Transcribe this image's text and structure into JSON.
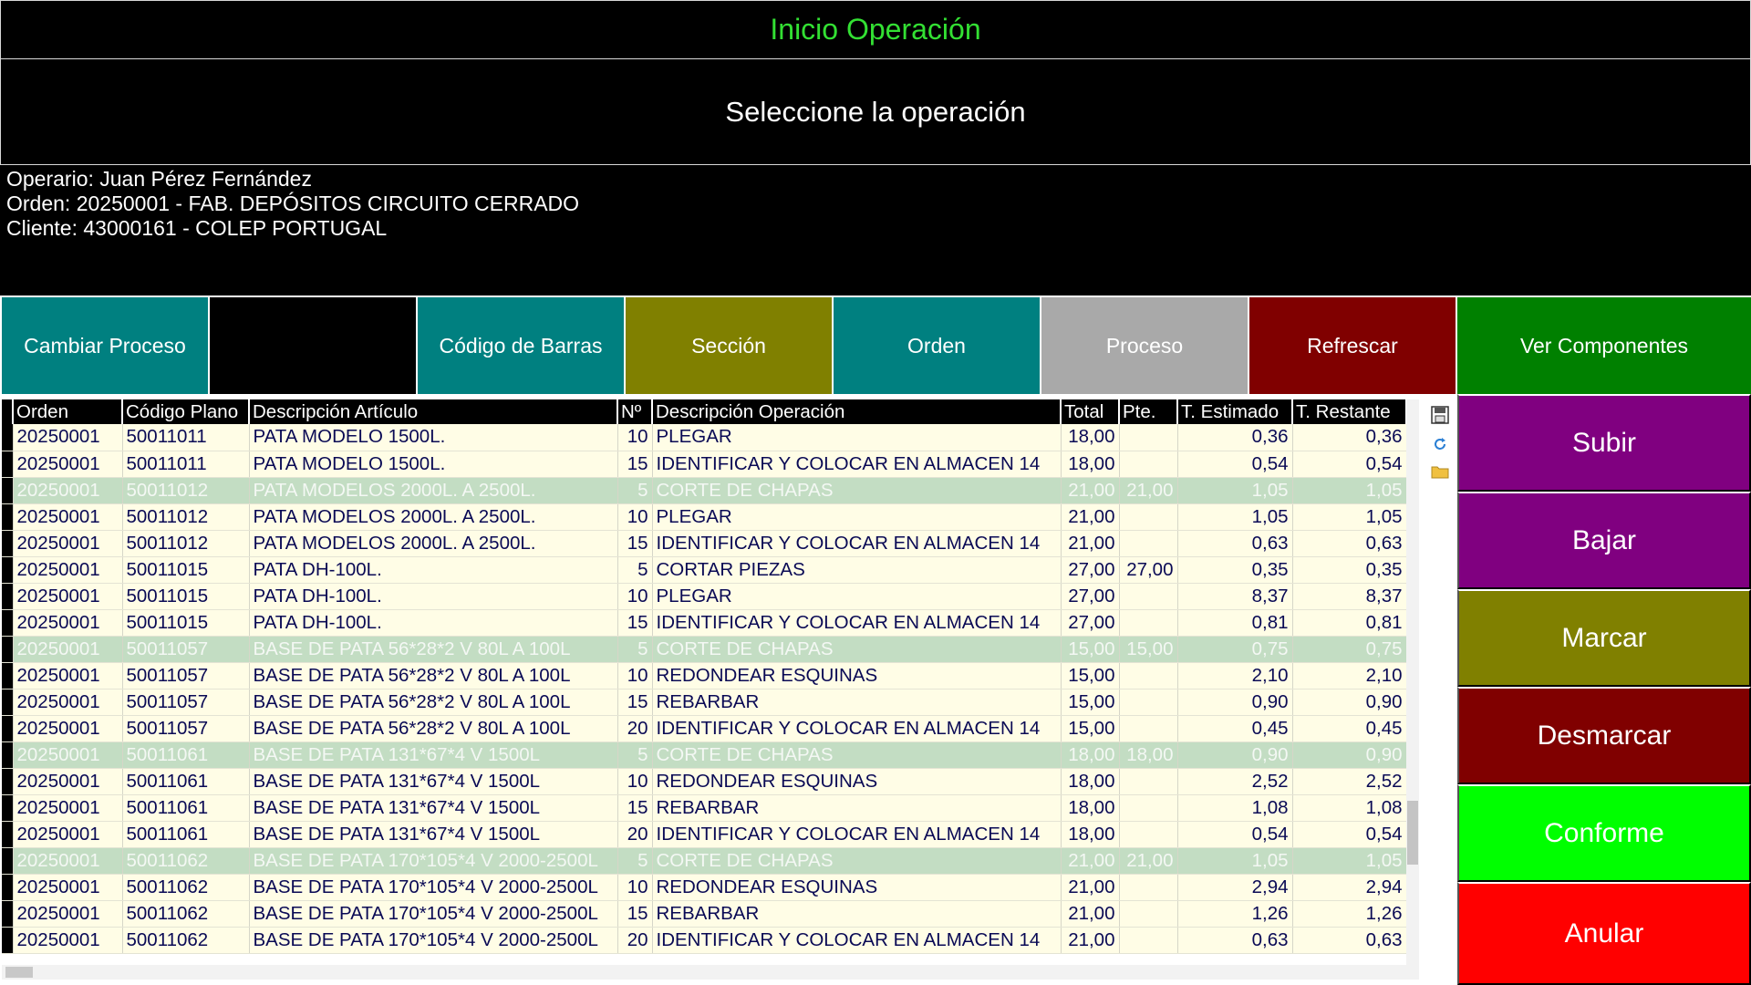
{
  "header": {
    "title": "Inicio Operación",
    "subtitle": "Seleccione la operación"
  },
  "info": {
    "operario": "Operario: Juan Pérez Fernández",
    "orden": "Orden: 20250001 - FAB. DEPÓSITOS CIRCUITO CERRADO",
    "cliente": "Cliente: 43000161 - COLEP PORTUGAL"
  },
  "toolbar": {
    "cambiar_proceso": "Cambiar Proceso",
    "codigo_barras": "Código de Barras",
    "seccion": "Sección",
    "orden": "Orden",
    "proceso": "Proceso",
    "refrescar": "Refrescar",
    "ver_componentes": "Ver Componentes"
  },
  "side_buttons": {
    "subir": "Subir",
    "bajar": "Bajar",
    "marcar": "Marcar",
    "desmarcar": "Desmarcar",
    "conforme": "Conforme",
    "anular": "Anular"
  },
  "colors": {
    "teal": "#008080",
    "olive": "#808000",
    "gray": "#a9a9a9",
    "maroon": "#800000",
    "green": "#008000",
    "purple": "#800080",
    "lime": "#00ff00",
    "red": "#ff0000",
    "title_green": "#33e033",
    "row_highlight": "#c3ddc3",
    "row_normal": "#fffde6"
  },
  "icons": [
    "save-icon",
    "refresh-icon",
    "folder-icon"
  ],
  "grid": {
    "columns": [
      "Orden",
      "Código Plano",
      "Descripción Artículo",
      "Nº",
      "Descripción Operación",
      "Total",
      "Pte.",
      "T. Estimado",
      "T. Restante"
    ],
    "rows": [
      {
        "orden": "20250001",
        "plano": "50011011",
        "articulo": "PATA MODELO 1500L.",
        "n": "10",
        "operacion": "PLEGAR",
        "total": "18,00",
        "pte": "",
        "estimado": "0,36",
        "restante": "0,36",
        "hl": false
      },
      {
        "orden": "20250001",
        "plano": "50011011",
        "articulo": "PATA MODELO 1500L.",
        "n": "15",
        "operacion": "IDENTIFICAR Y COLOCAR EN ALMACEN 14",
        "total": "18,00",
        "pte": "",
        "estimado": "0,54",
        "restante": "0,54",
        "hl": false
      },
      {
        "orden": "20250001",
        "plano": "50011012",
        "articulo": "PATA MODELOS 2000L. A 2500L.",
        "n": "5",
        "operacion": "CORTE DE CHAPAS",
        "total": "21,00",
        "pte": "21,00",
        "estimado": "1,05",
        "restante": "1,05",
        "hl": true
      },
      {
        "orden": "20250001",
        "plano": "50011012",
        "articulo": "PATA MODELOS 2000L. A 2500L.",
        "n": "10",
        "operacion": "PLEGAR",
        "total": "21,00",
        "pte": "",
        "estimado": "1,05",
        "restante": "1,05",
        "hl": false
      },
      {
        "orden": "20250001",
        "plano": "50011012",
        "articulo": "PATA MODELOS 2000L. A 2500L.",
        "n": "15",
        "operacion": "IDENTIFICAR Y COLOCAR EN ALMACEN 14",
        "total": "21,00",
        "pte": "",
        "estimado": "0,63",
        "restante": "0,63",
        "hl": false
      },
      {
        "orden": "20250001",
        "plano": "50011015",
        "articulo": "PATA DH-100L.",
        "n": "5",
        "operacion": "CORTAR PIEZAS",
        "total": "27,00",
        "pte": "27,00",
        "estimado": "0,35",
        "restante": "0,35",
        "hl": false
      },
      {
        "orden": "20250001",
        "plano": "50011015",
        "articulo": "PATA DH-100L.",
        "n": "10",
        "operacion": "PLEGAR",
        "total": "27,00",
        "pte": "",
        "estimado": "8,37",
        "restante": "8,37",
        "hl": false
      },
      {
        "orden": "20250001",
        "plano": "50011015",
        "articulo": "PATA DH-100L.",
        "n": "15",
        "operacion": "IDENTIFICAR Y COLOCAR EN ALMACEN 14",
        "total": "27,00",
        "pte": "",
        "estimado": "0,81",
        "restante": "0,81",
        "hl": false
      },
      {
        "orden": "20250001",
        "plano": "50011057",
        "articulo": "BASE DE PATA 56*28*2  V 80L A 100L",
        "n": "5",
        "operacion": "CORTE DE CHAPAS",
        "total": "15,00",
        "pte": "15,00",
        "estimado": "0,75",
        "restante": "0,75",
        "hl": true
      },
      {
        "orden": "20250001",
        "plano": "50011057",
        "articulo": "BASE DE PATA 56*28*2  V 80L A 100L",
        "n": "10",
        "operacion": "REDONDEAR  ESQUINAS",
        "total": "15,00",
        "pte": "",
        "estimado": "2,10",
        "restante": "2,10",
        "hl": false
      },
      {
        "orden": "20250001",
        "plano": "50011057",
        "articulo": "BASE DE PATA 56*28*2  V 80L A 100L",
        "n": "15",
        "operacion": "REBARBAR",
        "total": "15,00",
        "pte": "",
        "estimado": "0,90",
        "restante": "0,90",
        "hl": false
      },
      {
        "orden": "20250001",
        "plano": "50011057",
        "articulo": "BASE DE PATA 56*28*2  V 80L A 100L",
        "n": "20",
        "operacion": "IDENTIFICAR Y COLOCAR EN ALMACEN 14",
        "total": "15,00",
        "pte": "",
        "estimado": "0,45",
        "restante": "0,45",
        "hl": false
      },
      {
        "orden": "20250001",
        "plano": "50011061",
        "articulo": "BASE DE PATA 131*67*4 V 1500L",
        "n": "5",
        "operacion": "CORTE DE CHAPAS",
        "total": "18,00",
        "pte": "18,00",
        "estimado": "0,90",
        "restante": "0,90",
        "hl": true
      },
      {
        "orden": "20250001",
        "plano": "50011061",
        "articulo": "BASE DE PATA 131*67*4 V 1500L",
        "n": "10",
        "operacion": "REDONDEAR  ESQUINAS",
        "total": "18,00",
        "pte": "",
        "estimado": "2,52",
        "restante": "2,52",
        "hl": false
      },
      {
        "orden": "20250001",
        "plano": "50011061",
        "articulo": "BASE DE PATA 131*67*4 V 1500L",
        "n": "15",
        "operacion": "REBARBAR",
        "total": "18,00",
        "pte": "",
        "estimado": "1,08",
        "restante": "1,08",
        "hl": false
      },
      {
        "orden": "20250001",
        "plano": "50011061",
        "articulo": "BASE DE PATA 131*67*4 V 1500L",
        "n": "20",
        "operacion": "IDENTIFICAR Y COLOCAR EN ALMACEN 14",
        "total": "18,00",
        "pte": "",
        "estimado": "0,54",
        "restante": "0,54",
        "hl": false
      },
      {
        "orden": "20250001",
        "plano": "50011062",
        "articulo": "BASE DE PATA 170*105*4  V 2000-2500L",
        "n": "5",
        "operacion": "CORTE DE CHAPAS",
        "total": "21,00",
        "pte": "21,00",
        "estimado": "1,05",
        "restante": "1,05",
        "hl": true
      },
      {
        "orden": "20250001",
        "plano": "50011062",
        "articulo": "BASE DE PATA 170*105*4  V 2000-2500L",
        "n": "10",
        "operacion": "REDONDEAR  ESQUINAS",
        "total": "21,00",
        "pte": "",
        "estimado": "2,94",
        "restante": "2,94",
        "hl": false
      },
      {
        "orden": "20250001",
        "plano": "50011062",
        "articulo": "BASE DE PATA 170*105*4  V 2000-2500L",
        "n": "15",
        "operacion": "REBARBAR",
        "total": "21,00",
        "pte": "",
        "estimado": "1,26",
        "restante": "1,26",
        "hl": false
      },
      {
        "orden": "20250001",
        "plano": "50011062",
        "articulo": "BASE DE PATA 170*105*4  V 2000-2500L",
        "n": "20",
        "operacion": "IDENTIFICAR Y COLOCAR EN ALMACEN 14",
        "total": "21,00",
        "pte": "",
        "estimado": "0,63",
        "restante": "0,63",
        "hl": false
      }
    ]
  }
}
